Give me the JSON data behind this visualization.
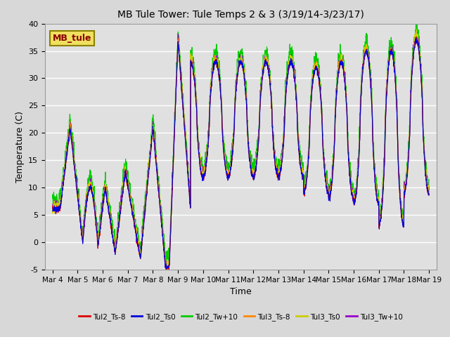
{
  "title": "MB Tule Tower: Tule Temps 2 & 3 (3/19/14-3/23/17)",
  "xlabel": "Time",
  "ylabel": "Temperature (C)",
  "ylim": [
    -5,
    40
  ],
  "fig_bg_color": "#d8d8d8",
  "plot_bg_color": "#e0e0e0",
  "legend_box_facecolor": "#f0e060",
  "legend_box_edgecolor": "#8b8000",
  "annotation_text": "MB_tule",
  "annotation_color": "#8b0000",
  "series_names": [
    "Tul2_Ts-8",
    "Tul2_Ts0",
    "Tul2_Tw+10",
    "Tul3_Ts-8",
    "Tul3_Ts0",
    "Tul3_Tw+10"
  ],
  "series_colors": [
    "#dd0000",
    "#0000dd",
    "#00cc00",
    "#ff8800",
    "#cccc00",
    "#9900cc"
  ],
  "xtick_labels": [
    "Mar 4",
    "Mar 5",
    "Mar 6",
    "Mar 7",
    "Mar 8",
    "Mar 9",
    "Mar 10",
    "Mar 11",
    "Mar 12",
    "Mar 13",
    "Mar 14",
    "Mar 15",
    "Mar 16",
    "Mar 17",
    "Mar 18",
    "Mar 19"
  ],
  "ytick_values": [
    -5,
    0,
    5,
    10,
    15,
    20,
    25,
    30,
    35,
    40
  ]
}
